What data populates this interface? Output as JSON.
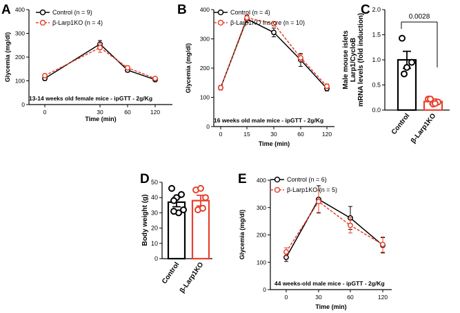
{
  "colors": {
    "control": "#000000",
    "ko": "#e8402a"
  },
  "panels": {
    "A": {
      "letter": "A",
      "legend": [
        "Control (n = 9)",
        "β-Larp1KO (n = 4)"
      ],
      "note": "13-14 weeks old female mice - ipGTT - 2g/Kg"
    },
    "B": {
      "letter": "B",
      "legend": [
        "Control (n = 4)",
        "β-Larp1KO Ins-cre  (n = 10)"
      ],
      "note": "16 weeks old male mice - ipGTT - 2g/Kg"
    },
    "C": {
      "letter": "C",
      "pvalue": "0.0028"
    },
    "D": {
      "letter": "D"
    },
    "E": {
      "letter": "E",
      "legend": [
        "Control (n = 6)",
        "β-Larp1KO (n = 5)"
      ],
      "note": "44 weeks-old male mice - ipGTT - 2g/Kg"
    }
  },
  "chart_data": [
    {
      "id": "A",
      "type": "line",
      "xlabel": "Time (min)",
      "ylabel": "Glycemia (mg/dl)",
      "x": [
        0,
        30,
        60,
        120
      ],
      "xticks": [
        "0",
        "30",
        "60",
        "120"
      ],
      "ylim": [
        0,
        400
      ],
      "yticks": [
        "0",
        "100",
        "200",
        "300",
        "400"
      ],
      "series": [
        {
          "name": "Control (n = 9)",
          "values": [
            110,
            255,
            145,
            105
          ],
          "err": [
            8,
            15,
            8,
            6
          ]
        },
        {
          "name": "β-Larp1KO (n = 4)",
          "values": [
            122,
            240,
            155,
            110
          ],
          "err": [
            8,
            20,
            8,
            6
          ]
        }
      ]
    },
    {
      "id": "B",
      "type": "line",
      "xlabel": "Time (min)",
      "ylabel": "Glycemia (mg/dl)",
      "x": [
        0,
        15,
        30,
        60,
        120
      ],
      "xticks": [
        "0",
        "15",
        "30",
        "60",
        "120"
      ],
      "ylim": [
        0,
        400
      ],
      "yticks": [
        "0",
        "100",
        "200",
        "300",
        "400"
      ],
      "series": [
        {
          "name": "Control (n = 4)",
          "values": [
            133,
            368,
            322,
            228,
            130
          ],
          "err": [
            8,
            12,
            15,
            22,
            8
          ]
        },
        {
          "name": "β-Larp1KO Ins-cre  (n = 10)",
          "values": [
            133,
            372,
            352,
            235,
            138
          ],
          "err": [
            8,
            10,
            8,
            12,
            8
          ]
        }
      ]
    },
    {
      "id": "C",
      "type": "bar",
      "ylabel": "Male mouse islets\nLarp1/CycloB\nmRNA levels (fold induction)",
      "categories": [
        "Control",
        "β-Larp1KO"
      ],
      "values": [
        1.0,
        0.17
      ],
      "err": [
        0.17,
        0.05
      ],
      "points": [
        [
          1.43,
          0.85,
          0.95,
          0.72
        ],
        [
          0.22,
          0.12,
          0.16,
          0.22,
          0.13
        ]
      ],
      "ylim": [
        0,
        2.0
      ],
      "yticks": [
        "0.0",
        "0.5",
        "1.0",
        "1.5",
        "2.0"
      ]
    },
    {
      "id": "D",
      "type": "bar",
      "ylabel": "Body weight (g)",
      "categories": [
        "Control",
        "β-Larp1KO"
      ],
      "values": [
        37,
        38
      ],
      "err": [
        3,
        3.5
      ],
      "points": [
        [
          46,
          40,
          42,
          38,
          30,
          32,
          31
        ],
        [
          45,
          46,
          40,
          32,
          33
        ]
      ],
      "ylim": [
        0,
        50
      ],
      "yticks": [
        "0",
        "10",
        "20",
        "30",
        "40",
        "50"
      ]
    },
    {
      "id": "E",
      "type": "line",
      "xlabel": "Time (min)",
      "ylabel": "Glycemia (mg/dl)",
      "x": [
        0,
        30,
        60,
        120
      ],
      "xticks": [
        "0",
        "30",
        "60",
        "120"
      ],
      "ylim": [
        0,
        400
      ],
      "yticks": [
        "0",
        "100",
        "200",
        "300",
        "400"
      ],
      "series": [
        {
          "name": "Control (n = 6)",
          "values": [
            118,
            330,
            262,
            162
          ],
          "err": [
            15,
            50,
            42,
            28
          ]
        },
        {
          "name": "β-Larp1KO (n = 5)",
          "values": [
            138,
            322,
            235,
            165
          ],
          "err": [
            15,
            40,
            28,
            28
          ]
        }
      ]
    }
  ]
}
